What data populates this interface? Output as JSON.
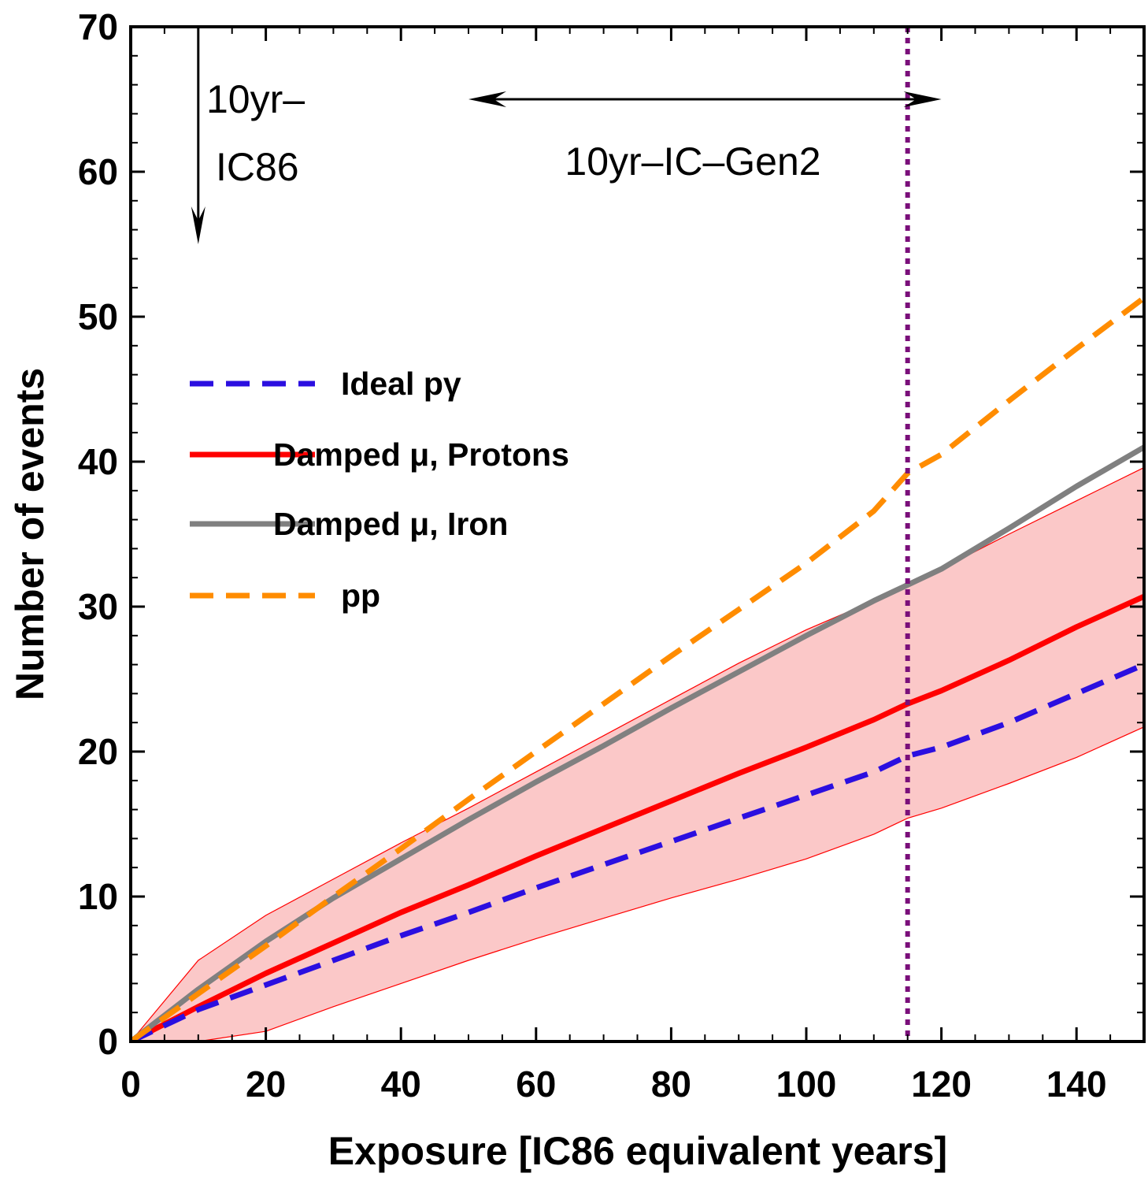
{
  "chart_data": {
    "type": "line",
    "xlabel": "Exposure [IC86 equivalent years]",
    "ylabel": "Number of events",
    "xlim": [
      0,
      150
    ],
    "ylim": [
      0,
      70
    ],
    "xticks": [
      0,
      20,
      40,
      60,
      80,
      100,
      120,
      140
    ],
    "yticks": [
      0,
      10,
      20,
      30,
      40,
      50,
      60,
      70
    ],
    "grid": false,
    "legend_position": "center-left",
    "series": [
      {
        "name": "Ideal pγ",
        "color": "#2b0fe0",
        "style": "dashed",
        "x": [
          0,
          10,
          20,
          30,
          40,
          50,
          60,
          70,
          80,
          90,
          100,
          110,
          115,
          120,
          130,
          140,
          150
        ],
        "y": [
          0,
          2.2,
          3.9,
          5.6,
          7.3,
          8.9,
          10.6,
          12.2,
          13.8,
          15.4,
          17.0,
          18.6,
          19.7,
          20.3,
          22.0,
          24.0,
          26.0
        ]
      },
      {
        "name": "Damped μ, Protons",
        "color": "#ff0000",
        "style": "solid",
        "x": [
          0,
          10,
          20,
          30,
          40,
          50,
          60,
          70,
          80,
          90,
          100,
          110,
          115,
          120,
          130,
          140,
          150
        ],
        "y": [
          0,
          2.4,
          4.7,
          6.8,
          8.9,
          10.8,
          12.8,
          14.7,
          16.6,
          18.5,
          20.3,
          22.2,
          23.3,
          24.2,
          26.3,
          28.6,
          30.7
        ]
      },
      {
        "name": "Damped μ, Iron",
        "color": "#808080",
        "style": "solid",
        "x": [
          0,
          10,
          20,
          30,
          40,
          50,
          60,
          70,
          80,
          90,
          100,
          110,
          115,
          120,
          130,
          140,
          150
        ],
        "y": [
          0,
          3.6,
          6.9,
          9.9,
          12.6,
          15.3,
          17.9,
          20.4,
          23.0,
          25.5,
          28.0,
          30.4,
          31.5,
          32.6,
          35.4,
          38.3,
          41.0
        ]
      },
      {
        "name": "pp",
        "color": "#ff8c00",
        "style": "dashed",
        "x": [
          0,
          10,
          20,
          30,
          40,
          50,
          60,
          70,
          80,
          90,
          100,
          110,
          115,
          120,
          130,
          140,
          150
        ],
        "y": [
          0,
          3.3,
          6.6,
          10.0,
          13.3,
          16.7,
          20.0,
          23.3,
          26.6,
          29.8,
          33.0,
          36.6,
          39.2,
          40.5,
          44.2,
          47.8,
          51.3
        ]
      }
    ],
    "band": {
      "name": "Damped μ, Protons uncertainty",
      "color": "#ff0000",
      "fill": "#fbc8c8",
      "x": [
        0,
        10,
        20,
        30,
        40,
        50,
        60,
        70,
        80,
        90,
        100,
        110,
        115,
        120,
        130,
        140,
        150
      ],
      "upper": [
        0,
        5.6,
        8.7,
        11.2,
        13.7,
        16.1,
        18.6,
        21.1,
        23.6,
        26.1,
        28.4,
        30.4,
        31.5,
        32.6,
        35.0,
        37.3,
        39.6
      ],
      "lower": [
        0,
        0,
        0.7,
        2.4,
        4.0,
        5.6,
        7.1,
        8.5,
        9.9,
        11.2,
        12.6,
        14.3,
        15.4,
        16.1,
        17.8,
        19.6,
        21.7
      ]
    },
    "vline": {
      "x": 115,
      "color": "#7a0f7a",
      "style": "dotted"
    },
    "annotations": [
      {
        "text_lines": [
          "10yr–",
          "IC86"
        ],
        "arrow": "down",
        "x": 10,
        "y_from": 70,
        "y_to": 55
      },
      {
        "text": "10yr–IC–Gen2",
        "arrow": "both",
        "x_from": 50,
        "x_to": 120,
        "y": 65
      }
    ]
  }
}
